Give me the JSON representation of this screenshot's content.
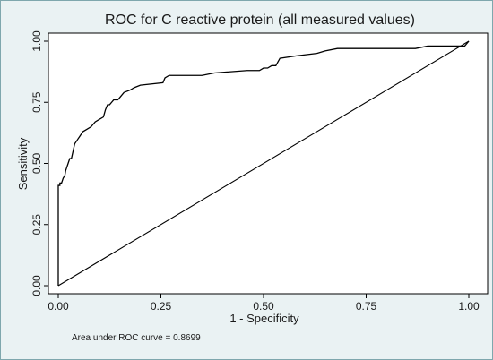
{
  "chart_data": {
    "type": "line",
    "title": "ROC for C reactive protein (all measured values)",
    "xlabel": "1 - Specificity",
    "ylabel": "Sensitivity",
    "xlim": [
      0,
      1
    ],
    "ylim": [
      0,
      1
    ],
    "x_ticks": [
      "0.00",
      "0.25",
      "0.50",
      "0.75",
      "1.00"
    ],
    "y_ticks": [
      "0.00",
      "0.25",
      "0.50",
      "0.75",
      "1.00"
    ],
    "grid": false,
    "legend": "none",
    "note": "Area under ROC curve = 0.8699",
    "series": [
      {
        "x": [
          0,
          0,
          0.004,
          0.004,
          0.008,
          0.012,
          0.016,
          0.018,
          0.02,
          0.024,
          0.028,
          0.032,
          0.036,
          0.04,
          0.044,
          0.048,
          0.052,
          0.06,
          0.07,
          0.08,
          0.09,
          0.1,
          0.11,
          0.115,
          0.12,
          0.125,
          0.13,
          0.135,
          0.14,
          0.145,
          0.15,
          0.16,
          0.175,
          0.185,
          0.2,
          0.255,
          0.26,
          0.27,
          0.35,
          0.38,
          0.46,
          0.49,
          0.5,
          0.51,
          0.52,
          0.53,
          0.54,
          0.58,
          0.63,
          0.65,
          0.68,
          0.87,
          0.9,
          0.96,
          0.99,
          1.0
        ],
        "y": [
          0,
          0.41,
          0.41,
          0.42,
          0.42,
          0.44,
          0.45,
          0.47,
          0.48,
          0.5,
          0.52,
          0.52,
          0.55,
          0.58,
          0.59,
          0.6,
          0.61,
          0.63,
          0.64,
          0.65,
          0.67,
          0.68,
          0.69,
          0.72,
          0.74,
          0.74,
          0.75,
          0.76,
          0.76,
          0.76,
          0.77,
          0.79,
          0.8,
          0.81,
          0.82,
          0.83,
          0.85,
          0.86,
          0.86,
          0.87,
          0.88,
          0.88,
          0.89,
          0.89,
          0.9,
          0.9,
          0.93,
          0.94,
          0.95,
          0.96,
          0.97,
          0.97,
          0.98,
          0.98,
          0.98,
          1.0
        ]
      },
      {
        "x": [
          0,
          1
        ],
        "y": [
          0,
          1
        ]
      }
    ]
  }
}
